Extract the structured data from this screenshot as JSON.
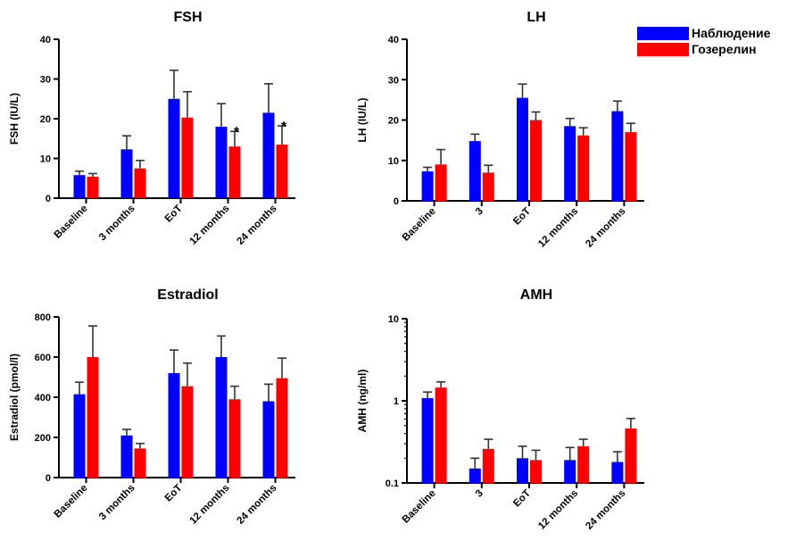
{
  "legend": {
    "items": [
      {
        "label": "Наблюдение",
        "color": "#0000ff"
      },
      {
        "label": "Гозерелин",
        "color": "#ff0000"
      }
    ]
  },
  "chart_data": [
    {
      "type": "bar",
      "title": "FSH",
      "ylabel": "FSH (IU/L)",
      "xlabel": "",
      "categories": [
        "Baseline",
        "3 months",
        "EoT",
        "12 months",
        "24 months"
      ],
      "ylim": [
        0,
        40
      ],
      "yticks": [
        0,
        10,
        20,
        30,
        40
      ],
      "yscale": "linear",
      "series": [
        {
          "name": "Наблюдение",
          "color": "#0000ff",
          "values": [
            5.8,
            12.3,
            25.0,
            18.0,
            21.5
          ],
          "errors": [
            1.0,
            3.4,
            7.2,
            5.8,
            7.3
          ]
        },
        {
          "name": "Гозерелин",
          "color": "#ff0000",
          "values": [
            5.4,
            7.5,
            20.3,
            13.0,
            13.5
          ],
          "errors": [
            0.8,
            2.0,
            6.5,
            3.8,
            4.7
          ]
        }
      ],
      "annotations": [
        {
          "category": "12 months",
          "text": "*"
        },
        {
          "category": "24 months",
          "text": "*"
        }
      ]
    },
    {
      "type": "bar",
      "title": "LH",
      "ylabel": "LH (IU/L)",
      "xlabel": "",
      "categories": [
        "Baseline",
        "3",
        "EoT",
        "12 months",
        "24 months"
      ],
      "ylim": [
        0,
        40
      ],
      "yticks": [
        0,
        10,
        20,
        30,
        40
      ],
      "yscale": "linear",
      "series": [
        {
          "name": "Наблюдение",
          "color": "#0000ff",
          "values": [
            7.3,
            14.8,
            25.5,
            18.5,
            22.2
          ],
          "errors": [
            1.0,
            1.7,
            3.4,
            1.9,
            2.5
          ]
        },
        {
          "name": "Гозерелин",
          "color": "#ff0000",
          "values": [
            9.0,
            7.0,
            20.0,
            16.2,
            17.0
          ],
          "errors": [
            3.7,
            1.8,
            2.0,
            1.9,
            2.2
          ]
        }
      ],
      "annotations": []
    },
    {
      "type": "bar",
      "title": "Estradiol",
      "ylabel": "Estradiol (pmol/l)",
      "xlabel": "",
      "categories": [
        "Baseline",
        "3 months",
        "EoT",
        "12 months",
        "24 months"
      ],
      "ylim": [
        0,
        800
      ],
      "yticks": [
        0,
        200,
        400,
        600,
        800
      ],
      "yscale": "linear",
      "series": [
        {
          "name": "Наблюдение",
          "color": "#0000ff",
          "values": [
            415,
            210,
            520,
            600,
            380
          ],
          "errors": [
            60,
            30,
            115,
            105,
            85
          ]
        },
        {
          "name": "Гозерелин",
          "color": "#ff0000",
          "values": [
            600,
            145,
            455,
            390,
            495
          ],
          "errors": [
            155,
            25,
            115,
            65,
            100
          ]
        }
      ],
      "annotations": []
    },
    {
      "type": "bar",
      "title": "AMH",
      "ylabel": "AMH (ng/ml)",
      "xlabel": "",
      "categories": [
        "Baseline",
        "3",
        "EoT",
        "12 months",
        "24 months"
      ],
      "ylim": [
        0.1,
        10
      ],
      "yticks": [
        0.1,
        1,
        10
      ],
      "ytick_labels": [
        "0.1",
        "1",
        "10"
      ],
      "yscale": "log",
      "series": [
        {
          "name": "Наблюдение",
          "color": "#0000ff",
          "values": [
            1.08,
            0.15,
            0.2,
            0.19,
            0.18
          ],
          "errors": [
            0.2,
            0.05,
            0.08,
            0.08,
            0.06
          ]
        },
        {
          "name": "Гозерелин",
          "color": "#ff0000",
          "values": [
            1.45,
            0.26,
            0.19,
            0.28,
            0.46
          ],
          "errors": [
            0.25,
            0.08,
            0.06,
            0.06,
            0.15
          ]
        }
      ],
      "annotations": []
    }
  ]
}
